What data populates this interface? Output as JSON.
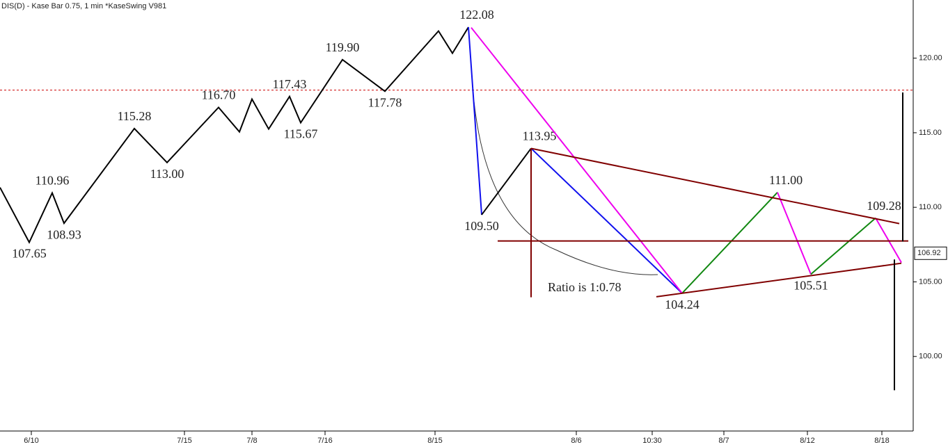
{
  "chart_data": {
    "type": "line",
    "title": "DIS(D) - Kase Bar 0.75, 1 min  *KaseSwing  V981",
    "annotation": "Ratio is 1:0.78",
    "last_price": 106.92,
    "xlim": [
      0,
      1312
    ],
    "ylim": [
      95,
      123.9
    ],
    "xticks": [
      {
        "value": 45,
        "label": "6/10"
      },
      {
        "value": 265,
        "label": "7/15"
      },
      {
        "value": 362,
        "label": "7/8"
      },
      {
        "value": 467,
        "label": "7/16"
      },
      {
        "value": 625,
        "label": "8/15"
      },
      {
        "value": 828,
        "label": "8/6"
      },
      {
        "value": 937,
        "label": "10:30"
      },
      {
        "value": 1040,
        "label": "8/7"
      },
      {
        "value": 1160,
        "label": "8/12"
      },
      {
        "value": 1267,
        "label": "8/18"
      }
    ],
    "yticks": [
      {
        "value": 100,
        "label": "100.00"
      },
      {
        "value": 105,
        "label": "105.00"
      },
      {
        "value": 110,
        "label": "110.00"
      },
      {
        "value": 115,
        "label": "115.00"
      },
      {
        "value": 120,
        "label": "120.00"
      }
    ],
    "hlines": [
      {
        "value": 117.86,
        "color": "#cc0000",
        "dashed": true
      }
    ],
    "series": [
      {
        "color": "#000000",
        "x": [
          0,
          42,
          75,
          92,
          193,
          240,
          314,
          344,
          362,
          386,
          416,
          432,
          492,
          553,
          630,
          650,
          673
        ],
        "values": [
          111.33,
          107.65,
          110.96,
          108.93,
          115.28,
          113.0,
          116.7,
          115.06,
          117.25,
          115.25,
          117.43,
          115.67,
          119.9,
          117.78,
          121.82,
          120.33,
          122.08
        ],
        "value_labels": [
          null,
          "107.65",
          "110.96",
          "108.93",
          "115.28",
          "113.00",
          "116.70",
          null,
          null,
          null,
          "117.43",
          "115.67",
          "119.90",
          "117.78",
          null,
          null,
          "122.08"
        ]
      },
      {
        "color": "#1010ee",
        "x": [
          673,
          681,
          692
        ],
        "values": [
          122.08,
          116.8,
          109.5
        ],
        "value_labels": [
          null,
          null,
          "109.50"
        ]
      },
      {
        "color": "#000000",
        "x": [
          692,
          763
        ],
        "values": [
          109.5,
          113.95
        ],
        "value_labels": [
          null,
          "113.95"
        ]
      },
      {
        "color": "#1010ee",
        "x": [
          763,
          980
        ],
        "values": [
          113.95,
          104.24
        ],
        "value_labels": [
          null,
          "104.24"
        ]
      },
      {
        "color": "#118811",
        "x": [
          980,
          1117
        ],
        "values": [
          104.24,
          111.0
        ],
        "value_labels": [
          null,
          "111.00"
        ]
      },
      {
        "color": "#ee00ee",
        "x": [
          1117,
          1165
        ],
        "values": [
          111.0,
          105.51
        ],
        "value_labels": [
          null,
          "105.51"
        ]
      },
      {
        "color": "#118811",
        "x": [
          1165,
          1258
        ],
        "values": [
          105.51,
          109.28
        ],
        "value_labels": [
          null,
          "109.28"
        ]
      },
      {
        "color": "#ee00ee",
        "x": [
          1258,
          1295
        ],
        "values": [
          109.28,
          106.3
        ]
      },
      {
        "color": "#ee00ee",
        "x": [
          677,
          980
        ],
        "values": [
          122.05,
          104.24
        ]
      },
      {
        "color": "#800000",
        "x": [
          763,
          1292
        ],
        "values": [
          113.95,
          108.91
        ]
      },
      {
        "color": "#800000",
        "x": [
          715,
          1305
        ],
        "values": [
          107.74,
          107.74
        ]
      },
      {
        "color": "#800000",
        "x": [
          943,
          1295
        ],
        "values": [
          104.0,
          106.25
        ]
      },
      {
        "color": "#800000",
        "x": [
          763,
          763
        ],
        "values": [
          113.95,
          103.97
        ]
      },
      {
        "color": "#000000",
        "x": [
          1297,
          1297
        ],
        "values": [
          117.7,
          107.7
        ]
      },
      {
        "color": "#000000",
        "x": [
          1285,
          1285
        ],
        "values": [
          106.5,
          97.73
        ]
      }
    ]
  }
}
